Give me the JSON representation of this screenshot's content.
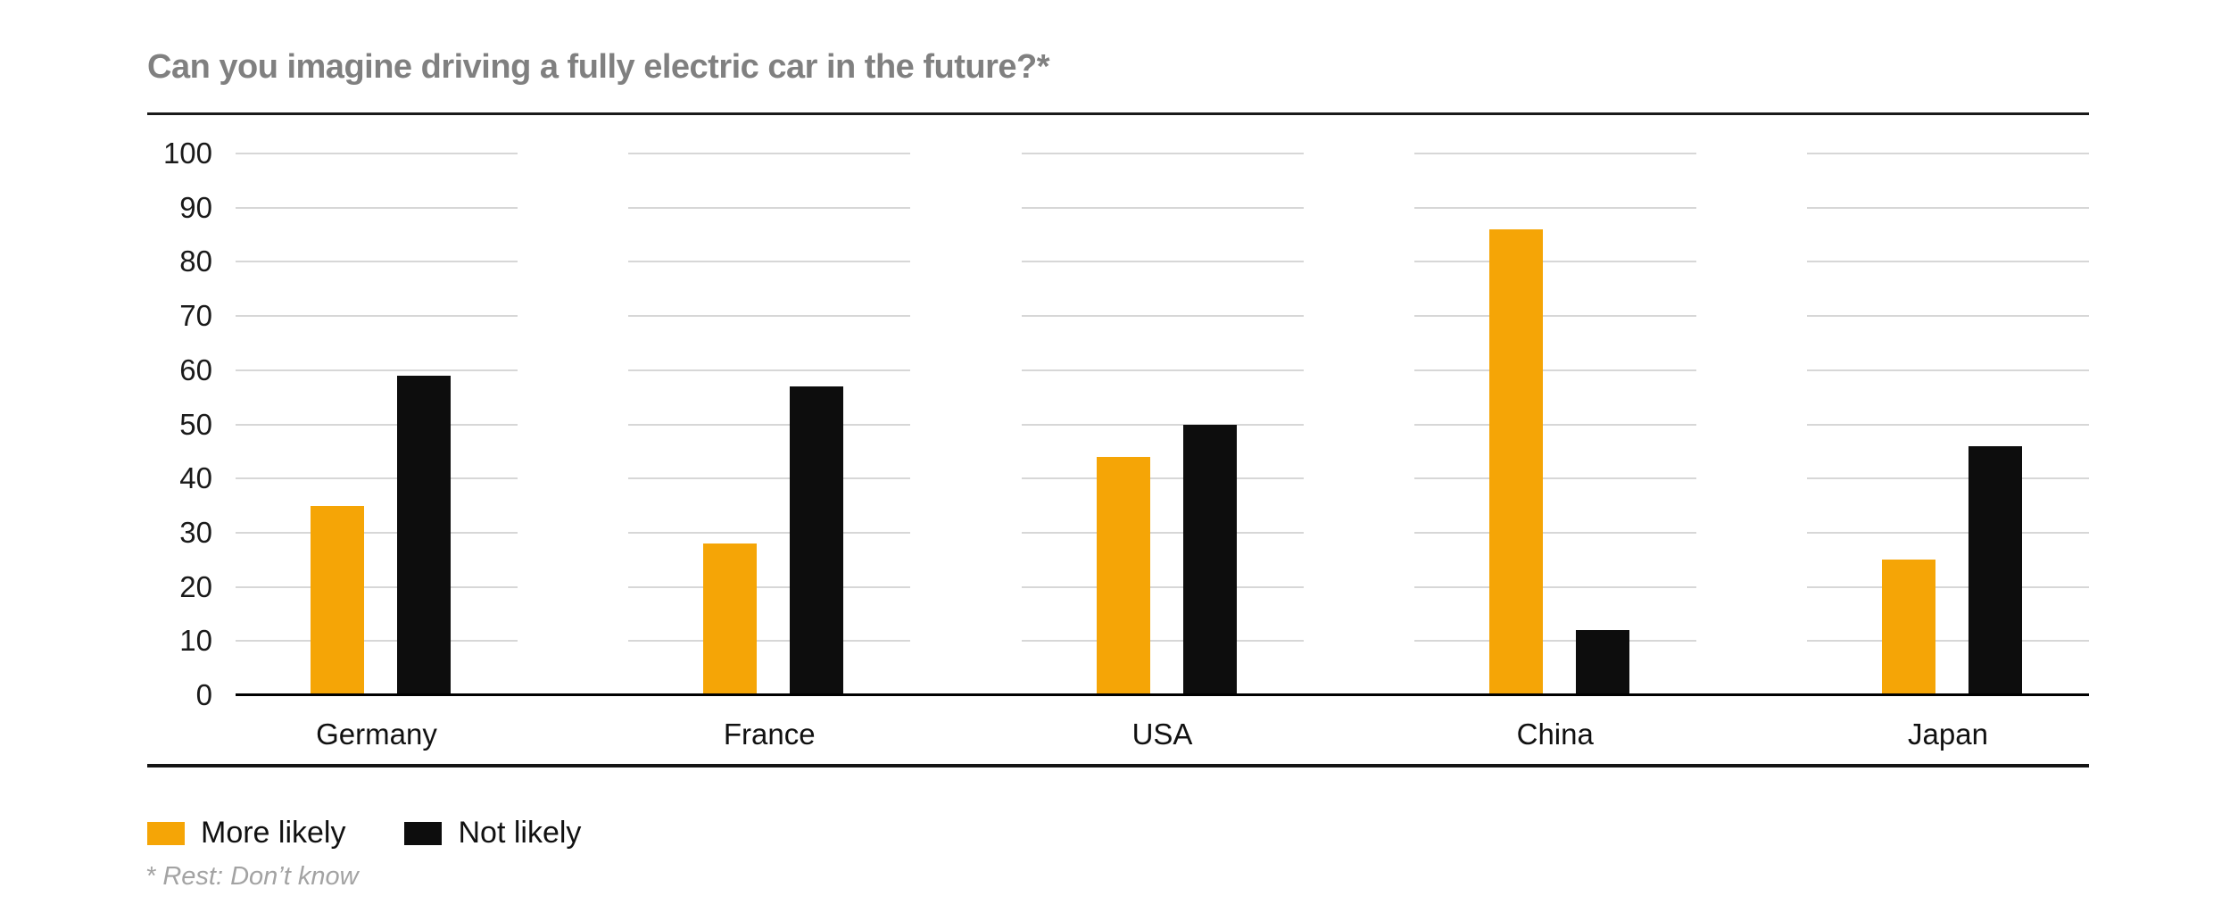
{
  "title": "Can you imagine driving a fully electric car in the future?*",
  "footnote": "* Rest: Don’t know",
  "chart_data": {
    "type": "bar",
    "grouped": true,
    "title": "Can you imagine driving a fully electric car in the future?*",
    "categories": [
      "Germany",
      "France",
      "USA",
      "China",
      "Japan"
    ],
    "series": [
      {
        "name": "More likely",
        "color": "#F5A506",
        "values": [
          35,
          28,
          44,
          86,
          25
        ]
      },
      {
        "name": "Not likely",
        "color": "#0D0D0D",
        "values": [
          59,
          57,
          50,
          12,
          46
        ]
      }
    ],
    "xlabel": "",
    "ylabel": "",
    "ylim": [
      0,
      100
    ],
    "yticks": [
      0,
      10,
      20,
      30,
      40,
      50,
      60,
      70,
      80,
      90,
      100
    ],
    "grid": true,
    "gridline_color": "#d7d7d7",
    "axis_color": "#000000",
    "legend_position": "bottom-left",
    "footnote": "* Rest: Don’t know"
  },
  "colors": {
    "title_text": "#808080",
    "rule": "#1a1a1a",
    "tick_text": "#1a1a1a",
    "footnote_text": "#a3a3a3"
  }
}
